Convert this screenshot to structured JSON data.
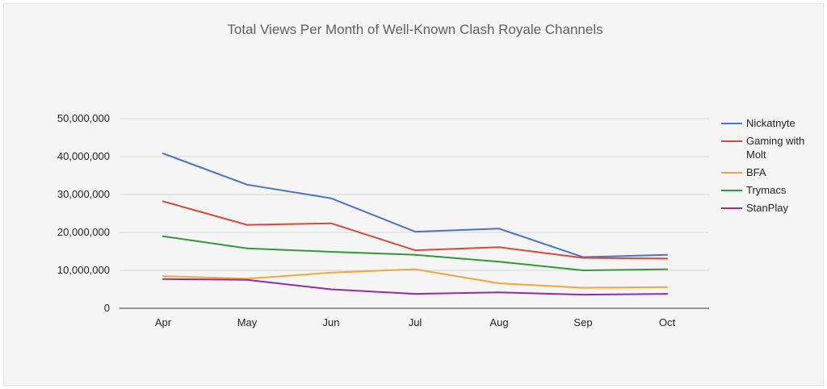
{
  "chart_data": {
    "type": "line",
    "title": "Total Views Per Month of Well-Known Clash Royale Channels",
    "xlabel": "",
    "ylabel": "",
    "categories": [
      "Apr",
      "May",
      "Jun",
      "Jul",
      "Aug",
      "Sep",
      "Oct"
    ],
    "ylim": [
      0,
      50000000
    ],
    "yticks": [
      0,
      10000000,
      20000000,
      30000000,
      40000000,
      50000000
    ],
    "ytick_labels": [
      "0",
      "10,000,000",
      "20,000,000",
      "30,000,000",
      "40,000,000",
      "50,000,000"
    ],
    "grid": true,
    "legend_position": "right",
    "series": [
      {
        "name": "Nickatnyte",
        "color": "#4a72cf",
        "values": [
          40800000,
          32600000,
          29000000,
          20200000,
          21000000,
          13500000,
          14100000
        ]
      },
      {
        "name": "Gaming with Molt",
        "color": "#d84a36",
        "values": [
          28200000,
          22000000,
          22400000,
          15300000,
          16100000,
          13300000,
          13100000
        ]
      },
      {
        "name": "BFA",
        "color": "#f4a63b",
        "values": [
          8500000,
          7800000,
          9400000,
          10300000,
          6600000,
          5400000,
          5600000
        ]
      },
      {
        "name": "Trymacs",
        "color": "#2f9a3b",
        "values": [
          19000000,
          15800000,
          14900000,
          14100000,
          12300000,
          10000000,
          10300000
        ]
      },
      {
        "name": "StanPlay",
        "color": "#9a2aa3",
        "values": [
          7700000,
          7500000,
          5000000,
          3800000,
          4200000,
          3600000,
          3800000
        ]
      }
    ]
  }
}
